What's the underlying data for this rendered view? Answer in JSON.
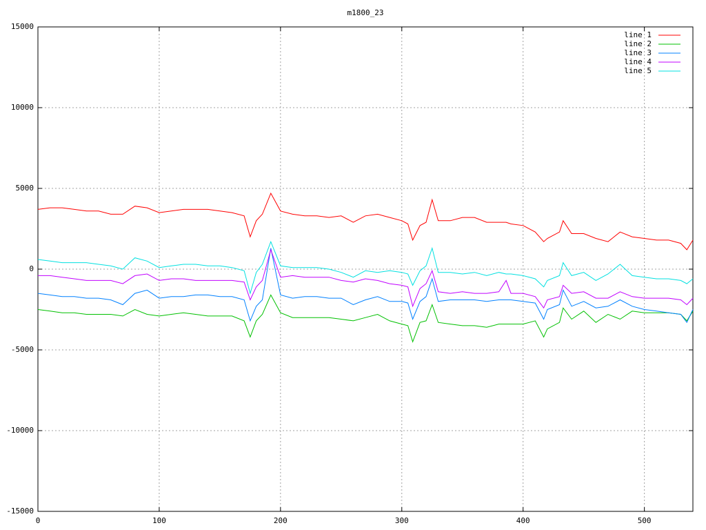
{
  "chart_data": {
    "type": "line",
    "title": "m1800_23",
    "x": [
      0,
      10,
      20,
      30,
      40,
      50,
      60,
      70,
      80,
      90,
      100,
      110,
      120,
      130,
      140,
      150,
      160,
      170,
      175,
      180,
      185,
      192,
      200,
      210,
      220,
      230,
      240,
      250,
      260,
      270,
      280,
      290,
      300,
      305,
      309,
      315,
      320,
      325,
      330,
      340,
      350,
      360,
      370,
      380,
      386,
      390,
      400,
      410,
      417,
      420,
      430,
      433,
      440,
      450,
      460,
      470,
      480,
      490,
      500,
      510,
      520,
      530,
      535,
      540
    ],
    "series": [
      {
        "name": "line 1",
        "color": "#ff0000",
        "values": [
          3700,
          3800,
          3800,
          3700,
          3600,
          3600,
          3400,
          3400,
          3900,
          3800,
          3500,
          3600,
          3700,
          3700,
          3700,
          3600,
          3500,
          3300,
          2000,
          3000,
          3400,
          4700,
          3600,
          3400,
          3300,
          3300,
          3200,
          3300,
          2900,
          3300,
          3400,
          3200,
          3000,
          2800,
          1800,
          2700,
          2900,
          4300,
          3000,
          3000,
          3200,
          3200,
          2900,
          2900,
          2900,
          2800,
          2700,
          2300,
          1700,
          1900,
          2300,
          3000,
          2200,
          2200,
          1900,
          1700,
          2300,
          2000,
          1900,
          1800,
          1800,
          1600,
          1200,
          1800
        ]
      },
      {
        "name": "line 2",
        "color": "#00c000",
        "values": [
          -2500,
          -2600,
          -2700,
          -2700,
          -2800,
          -2800,
          -2800,
          -2900,
          -2500,
          -2800,
          -2900,
          -2800,
          -2700,
          -2800,
          -2900,
          -2900,
          -2900,
          -3200,
          -4200,
          -3200,
          -2800,
          -1600,
          -2700,
          -3000,
          -3000,
          -3000,
          -3000,
          -3100,
          -3200,
          -3000,
          -2800,
          -3200,
          -3400,
          -3500,
          -4500,
          -3300,
          -3200,
          -2200,
          -3300,
          -3400,
          -3500,
          -3500,
          -3600,
          -3400,
          -3400,
          -3400,
          -3400,
          -3200,
          -4200,
          -3700,
          -3300,
          -2400,
          -3100,
          -2600,
          -3300,
          -2800,
          -3100,
          -2600,
          -2700,
          -2700,
          -2700,
          -2800,
          -3200,
          -2600
        ]
      },
      {
        "name": "line 3",
        "color": "#0080ff",
        "values": [
          -1500,
          -1600,
          -1700,
          -1700,
          -1800,
          -1800,
          -1900,
          -2200,
          -1500,
          -1300,
          -1800,
          -1700,
          -1700,
          -1600,
          -1600,
          -1700,
          -1700,
          -1900,
          -3200,
          -2300,
          -1900,
          1300,
          -1600,
          -1800,
          -1700,
          -1700,
          -1800,
          -1800,
          -2200,
          -1900,
          -1700,
          -2000,
          -2000,
          -2100,
          -3100,
          -2000,
          -1700,
          -600,
          -2000,
          -1900,
          -1900,
          -1900,
          -2000,
          -1900,
          -1900,
          -1900,
          -2000,
          -2100,
          -3100,
          -2500,
          -2200,
          -1300,
          -2300,
          -2000,
          -2400,
          -2300,
          -1900,
          -2300,
          -2500,
          -2600,
          -2700,
          -2800,
          -3300,
          -2500
        ]
      },
      {
        "name": "line 4",
        "color": "#c000ff",
        "values": [
          -400,
          -400,
          -500,
          -600,
          -700,
          -700,
          -700,
          -900,
          -400,
          -300,
          -700,
          -600,
          -600,
          -700,
          -700,
          -700,
          -700,
          -800,
          -1900,
          -1100,
          -700,
          1200,
          -500,
          -400,
          -500,
          -500,
          -500,
          -700,
          -800,
          -600,
          -700,
          -900,
          -1000,
          -1100,
          -2300,
          -1200,
          -900,
          -100,
          -1400,
          -1500,
          -1400,
          -1500,
          -1500,
          -1400,
          -700,
          -1500,
          -1500,
          -1700,
          -2400,
          -1900,
          -1700,
          -1000,
          -1500,
          -1400,
          -1800,
          -1800,
          -1400,
          -1700,
          -1800,
          -1800,
          -1800,
          -1900,
          -2200,
          -1800
        ]
      },
      {
        "name": "line 5",
        "color": "#00e0e0",
        "values": [
          600,
          500,
          400,
          400,
          400,
          300,
          200,
          0,
          700,
          500,
          100,
          200,
          300,
          300,
          200,
          200,
          100,
          -100,
          -1500,
          -200,
          300,
          1700,
          200,
          100,
          100,
          100,
          0,
          -200,
          -500,
          -100,
          -200,
          -100,
          -200,
          -300,
          -1000,
          -100,
          200,
          1300,
          -200,
          -200,
          -300,
          -200,
          -400,
          -200,
          -300,
          -300,
          -400,
          -600,
          -1100,
          -700,
          -400,
          400,
          -400,
          -200,
          -700,
          -300,
          300,
          -400,
          -500,
          -600,
          -600,
          -700,
          -900,
          -600
        ]
      }
    ],
    "xlim": [
      0,
      540
    ],
    "xticks": [
      0,
      100,
      200,
      300,
      400,
      500
    ],
    "ylim": [
      -15000,
      15000
    ],
    "yticks": [
      -15000,
      -10000,
      -5000,
      0,
      5000,
      10000,
      15000
    ],
    "grid": true,
    "legend": "top-right"
  }
}
